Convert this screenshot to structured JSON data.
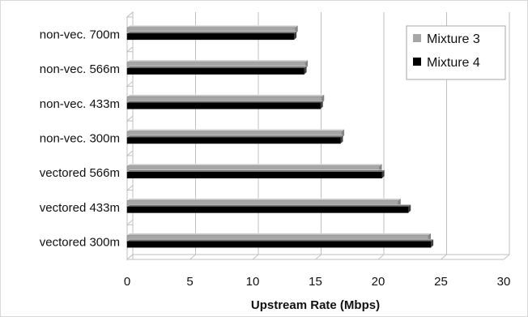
{
  "chart_data": {
    "type": "bar",
    "orientation": "horizontal",
    "categories": [
      "vectored 300m",
      "vectored 433m",
      "vectored 566m",
      "non-vec. 300m",
      "non-vec. 433m",
      "non-vec. 566m",
      "non-vec. 700m"
    ],
    "series": [
      {
        "name": "Mixture 3",
        "color": "#a6a6a6",
        "values": [
          24.0,
          21.6,
          20.1,
          17.1,
          15.5,
          14.2,
          13.4
        ]
      },
      {
        "name": "Mixture 4",
        "color": "#000000",
        "values": [
          24.2,
          22.4,
          20.3,
          17.0,
          15.4,
          14.1,
          13.3
        ]
      }
    ],
    "xlabel": "Upstream Rate (Mbps)",
    "xlim": [
      0,
      30
    ],
    "xticks": [
      0,
      5,
      10,
      15,
      20,
      25,
      30
    ],
    "grid": true,
    "legend_position": "top-right",
    "style": "3d-bar"
  }
}
